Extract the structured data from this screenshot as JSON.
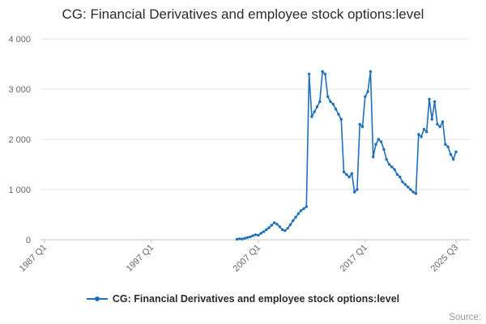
{
  "title": "CG: Financial Derivatives and employee stock options:level",
  "source_label": "Source:",
  "legend": {
    "label": "CG: Financial Derivatives and employee stock options:level"
  },
  "chart_data": {
    "type": "line",
    "title": "CG: Financial Derivatives and employee stock options:level",
    "line_color": "#1d70b8",
    "marker": "circle",
    "grid": true,
    "legend_position": "bottom",
    "x_axis": {
      "start": "1987 Q1",
      "end": "2025 Q3",
      "frequency": "quarterly",
      "tick_labels": [
        "1987 Q1",
        "1997 Q1",
        "2007 Q1",
        "2017 Q1",
        "2025 Q3"
      ]
    },
    "y_axis": {
      "min": 0,
      "max": 4000,
      "ticks": [
        {
          "value": 0,
          "label": "0"
        },
        {
          "value": 1000,
          "label": "1 000"
        },
        {
          "value": 2000,
          "label": "2 000"
        },
        {
          "value": 3000,
          "label": "3 000"
        },
        {
          "value": 4000,
          "label": "4 000"
        }
      ]
    },
    "series": [
      {
        "name": "CG: Financial Derivatives and employee stock options:level",
        "start": "2005 Q1",
        "frequency": "quarterly",
        "values": [
          10,
          20,
          15,
          30,
          45,
          60,
          80,
          100,
          90,
          130,
          160,
          200,
          240,
          290,
          340,
          310,
          260,
          200,
          180,
          230,
          300,
          380,
          450,
          520,
          580,
          620,
          660,
          3300,
          2450,
          2550,
          2650,
          2750,
          3350,
          3300,
          2850,
          2750,
          2700,
          2600,
          2500,
          2400,
          1350,
          1300,
          1250,
          1320,
          950,
          1000,
          2300,
          2250,
          2850,
          2950,
          3350,
          1650,
          1900,
          2000,
          1950,
          1800,
          1600,
          1500,
          1450,
          1400,
          1300,
          1250,
          1150,
          1100,
          1050,
          1000,
          950,
          920,
          2100,
          2050,
          2200,
          2150,
          2800,
          2400,
          2750,
          2300,
          2250,
          2350,
          1900,
          1850,
          1700,
          1600,
          1750
        ]
      }
    ]
  }
}
